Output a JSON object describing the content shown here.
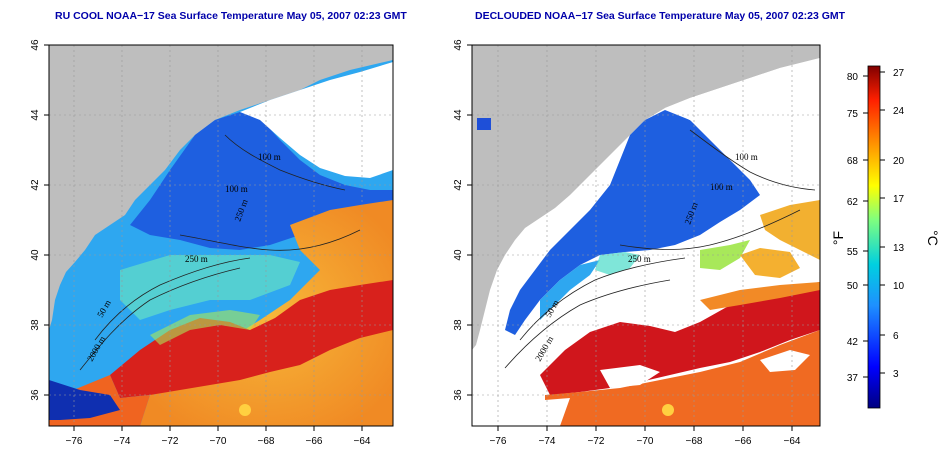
{
  "panels": [
    {
      "title": "RU COOL NOAA−17 Sea Surface Temperature May 05, 2007 02:23 GMT",
      "contours": [
        "100 m",
        "100 m",
        "250 m",
        "250 m",
        "50 m",
        "2000 m"
      ]
    },
    {
      "title": "DECLOUDED NOAA−17 Sea Surface Temperature May 05, 2007 02:23 GMT",
      "contours": [
        "100 m",
        "100 m",
        "250 m",
        "250 m",
        "50 m",
        "2000 m"
      ]
    }
  ],
  "axes": {
    "lat_ticks": [
      "46",
      "44",
      "42",
      "40",
      "38",
      "36"
    ],
    "lon_ticks": [
      "−76",
      "−74",
      "−72",
      "−70",
      "−68",
      "−66",
      "−64"
    ]
  },
  "colorbar": {
    "fahrenheit_ticks": [
      "80",
      "75",
      "68",
      "62",
      "55",
      "50",
      "42",
      "37"
    ],
    "celsius_ticks": [
      "27",
      "24",
      "20",
      "17",
      "13",
      "10",
      "6",
      "3"
    ],
    "fahrenheit_unit": "°F",
    "celsius_unit": "°C"
  },
  "colors": {
    "land": "#bebebe",
    "cloud_free": "#ffffff",
    "cold": "#1e4fd8",
    "cool": "#2ea7f0",
    "mid": "#5fe0d0",
    "warm": "#f2a21e",
    "hot": "#e8401a",
    "gulfstream": "#d0161c",
    "title": "#0000aa"
  }
}
